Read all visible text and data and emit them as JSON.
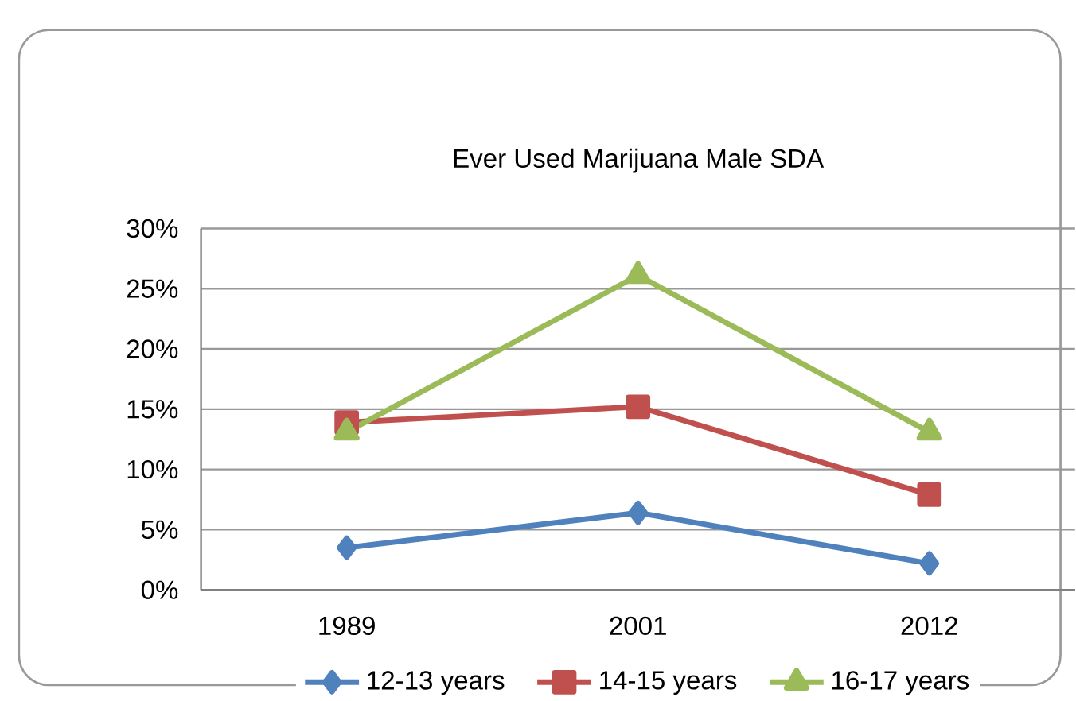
{
  "chart_data": {
    "type": "line",
    "title": "Ever Used Marijuana Male SDA",
    "categories": [
      "1989",
      "2001",
      "2012"
    ],
    "series": [
      {
        "name": "12-13 years",
        "color": "#4f81bd",
        "marker": "diamond",
        "values": [
          3.5,
          6.4,
          2.2
        ]
      },
      {
        "name": "14-15 years",
        "color": "#c0504d",
        "marker": "square",
        "values": [
          13.9,
          15.2,
          7.9
        ]
      },
      {
        "name": "16-17 years",
        "color": "#9bbb59",
        "marker": "triangle",
        "values": [
          13.1,
          26.1,
          13.1
        ]
      }
    ],
    "ylim": [
      0,
      30
    ],
    "yticks": [
      {
        "value": 0,
        "label": "0%"
      },
      {
        "value": 5,
        "label": "5%"
      },
      {
        "value": 10,
        "label": "10%"
      },
      {
        "value": 15,
        "label": "15%"
      },
      {
        "value": 20,
        "label": "20%"
      },
      {
        "value": 25,
        "label": "25%"
      },
      {
        "value": 30,
        "label": "30%"
      }
    ],
    "grid": "y",
    "legend": "bottom",
    "line_style": "solid"
  }
}
